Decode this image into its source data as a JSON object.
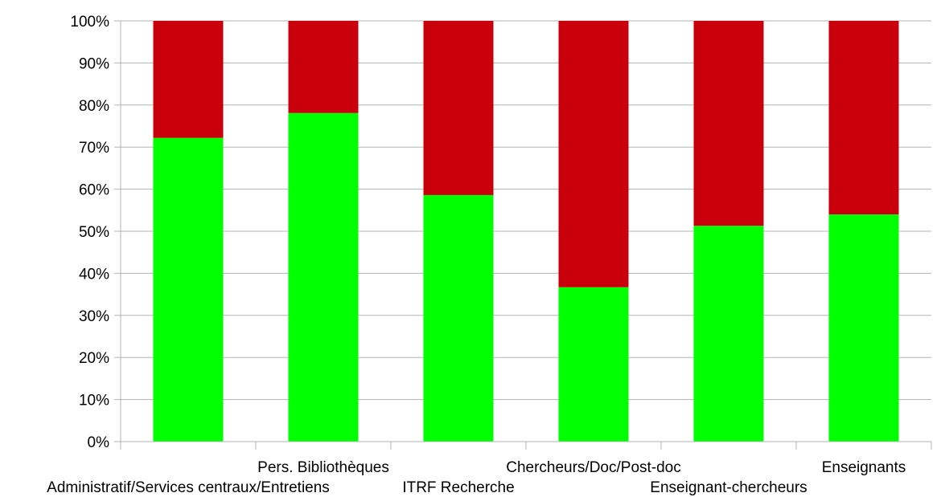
{
  "chart_data": {
    "type": "bar",
    "stacked": true,
    "percent_stacked": true,
    "categories": [
      "Administratif/Services centraux/Entretiens",
      "Pers. Bibliothèques",
      "ITRF Recherche",
      "Chercheurs/Doc/Post-doc",
      "Enseignant-chercheurs",
      "Enseignants"
    ],
    "series": [
      {
        "color": "#00ff00",
        "values": [
          72.2,
          78.1,
          58.6,
          36.7,
          51.3,
          54.0
        ]
      },
      {
        "color": "#c9000b",
        "values": [
          27.8,
          21.9,
          41.4,
          63.3,
          48.7,
          46.0
        ]
      }
    ],
    "y_ticks": [
      "0%",
      "10%",
      "20%",
      "30%",
      "40%",
      "50%",
      "60%",
      "70%",
      "80%",
      "90%",
      "100%"
    ],
    "ylim": [
      0,
      100
    ],
    "grid": true,
    "legend": "none",
    "title": "",
    "xlabel": "",
    "ylabel": ""
  }
}
